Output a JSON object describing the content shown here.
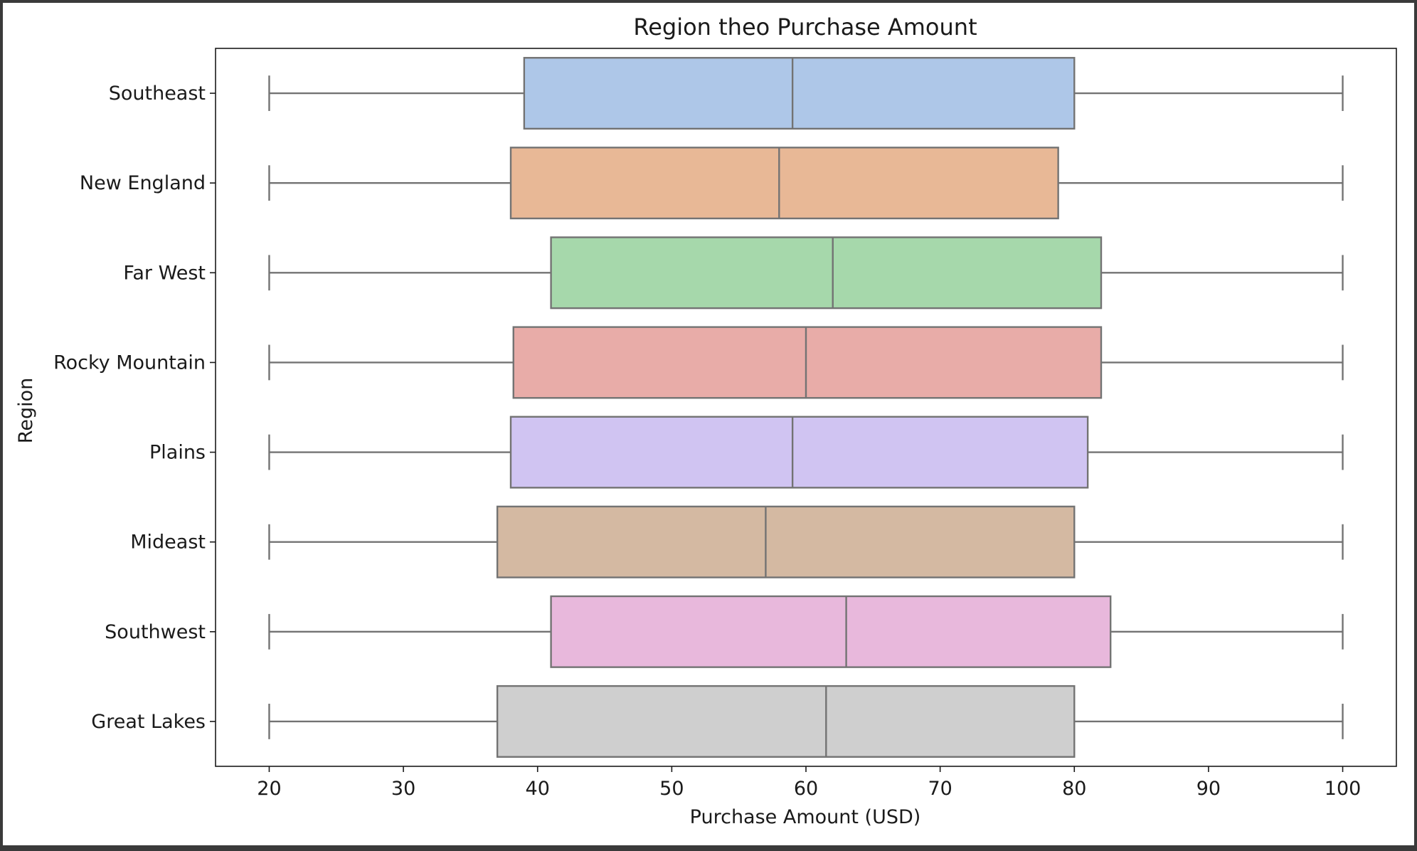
{
  "chart_data": {
    "type": "boxplot",
    "orientation": "horizontal",
    "title": "Region theo Purchase Amount",
    "xlabel": "Purchase Amount (USD)",
    "ylabel": "Region",
    "xlim": [
      16,
      104
    ],
    "xticks": [
      20,
      30,
      40,
      50,
      60,
      70,
      80,
      90,
      100
    ],
    "grid": false,
    "categories": [
      "Southeast",
      "New England",
      "Far West",
      "Rocky Mountain",
      "Plains",
      "Mideast",
      "Southwest",
      "Great Lakes"
    ],
    "boxes": [
      {
        "category": "Southeast",
        "min": 20,
        "q1": 39.0,
        "median": 59.0,
        "q3": 80.0,
        "max": 100,
        "color": "#aec7e8"
      },
      {
        "category": "New England",
        "min": 20,
        "q1": 38.0,
        "median": 58.0,
        "q3": 78.8,
        "max": 100,
        "color": "#e8b896"
      },
      {
        "category": "Far West",
        "min": 20,
        "q1": 41.0,
        "median": 62.0,
        "q3": 82.0,
        "max": 100,
        "color": "#a6d8ab"
      },
      {
        "category": "Rocky Mountain",
        "min": 20,
        "q1": 38.2,
        "median": 60.0,
        "q3": 82.0,
        "max": 100,
        "color": "#e8aca8"
      },
      {
        "category": "Plains",
        "min": 20,
        "q1": 38.0,
        "median": 59.0,
        "q3": 81.0,
        "max": 100,
        "color": "#d0c4f2"
      },
      {
        "category": "Mideast",
        "min": 20,
        "q1": 37.0,
        "median": 57.0,
        "q3": 80.0,
        "max": 100,
        "color": "#d4b9a2"
      },
      {
        "category": "Southwest",
        "min": 20,
        "q1": 41.0,
        "median": 63.0,
        "q3": 82.7,
        "max": 100,
        "color": "#e8b8dc"
      },
      {
        "category": "Great Lakes",
        "min": 20,
        "q1": 37.0,
        "median": 61.5,
        "q3": 80.0,
        "max": 100,
        "color": "#cfcfcf"
      }
    ]
  },
  "colors": {
    "line": "#737373",
    "axis": "#1a1a1a",
    "background": "#ffffff",
    "frame": "#3a3a3a"
  }
}
